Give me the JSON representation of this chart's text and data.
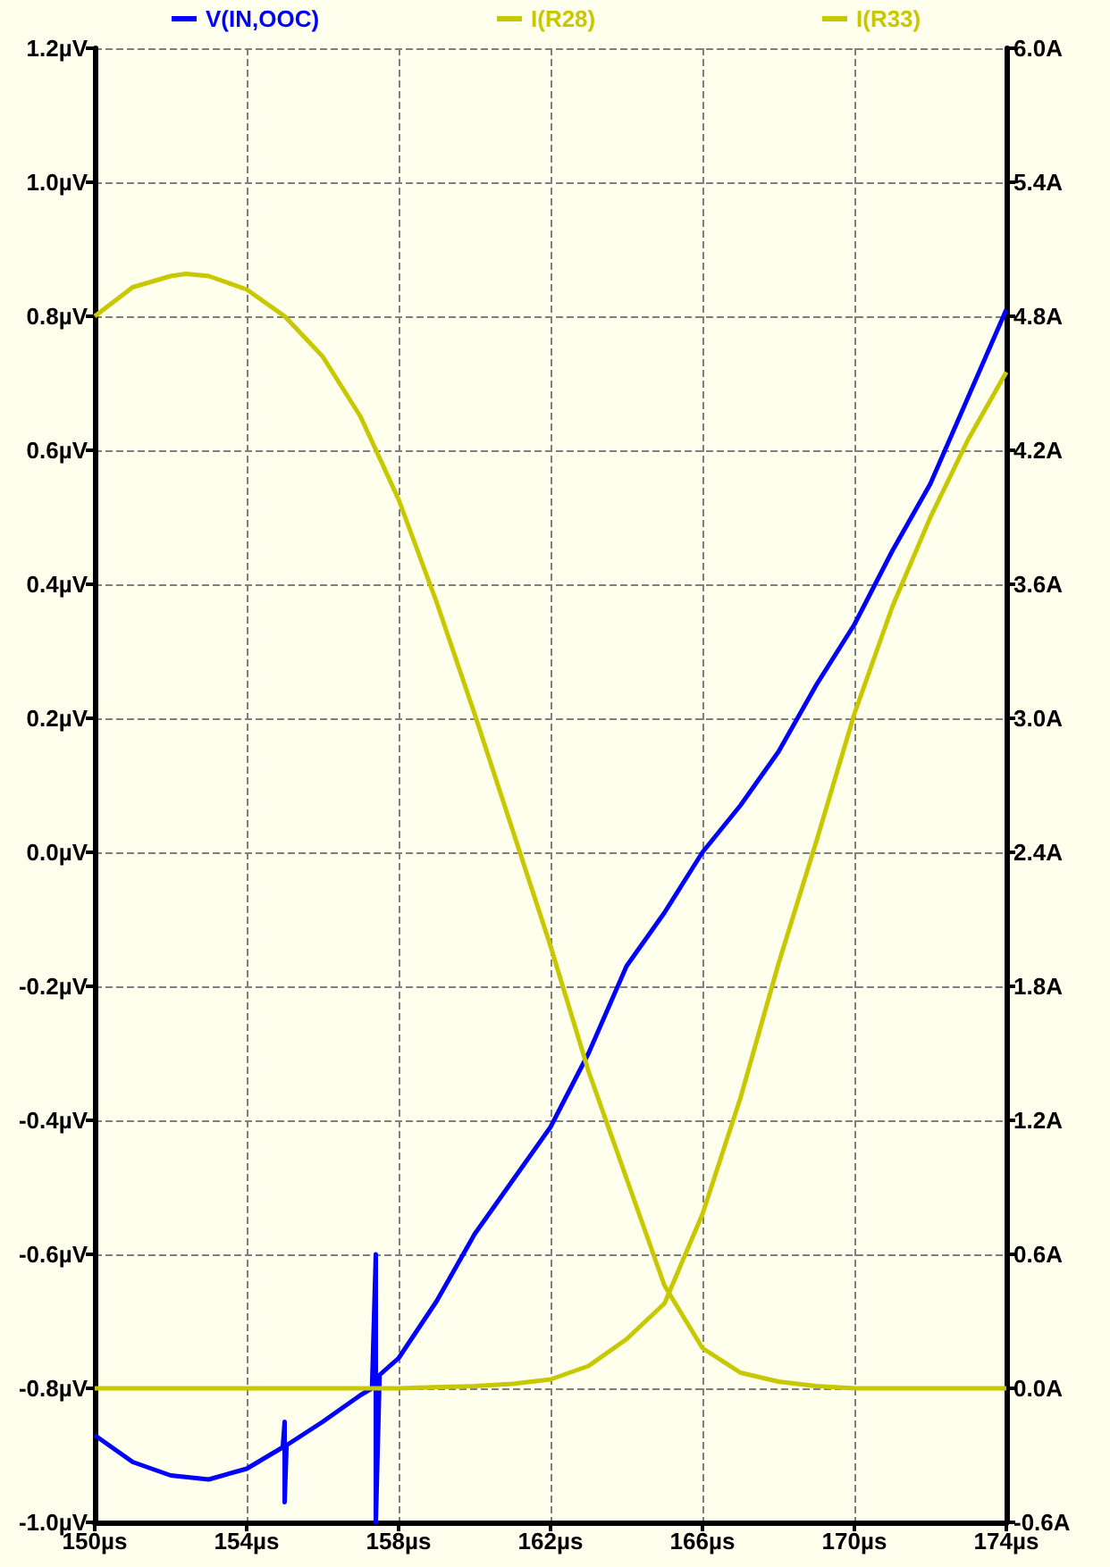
{
  "chart_data": {
    "type": "line",
    "xlim": [
      150,
      174
    ],
    "xticks": [
      {
        "value": 150,
        "label": "150µs"
      },
      {
        "value": 154,
        "label": "154µs"
      },
      {
        "value": 158,
        "label": "158µs"
      },
      {
        "value": 162,
        "label": "162µs"
      },
      {
        "value": 166,
        "label": "166µs"
      },
      {
        "value": 170,
        "label": "170µs"
      },
      {
        "value": 174,
        "label": "174µs"
      }
    ],
    "ylim": [
      -1.0,
      1.2
    ],
    "yticks": [
      {
        "value": -1.0,
        "label": "-1.0µV"
      },
      {
        "value": -0.8,
        "label": "-0.8µV"
      },
      {
        "value": -0.6,
        "label": "-0.6µV"
      },
      {
        "value": -0.4,
        "label": "-0.4µV"
      },
      {
        "value": -0.2,
        "label": "-0.2µV"
      },
      {
        "value": 0,
        "label": "0.0µV"
      },
      {
        "value": 0.2,
        "label": "0.2µV"
      },
      {
        "value": 0.4,
        "label": "0.4µV"
      },
      {
        "value": 0.6,
        "label": "0.6µV"
      },
      {
        "value": 0.8,
        "label": "0.8µV"
      },
      {
        "value": 1.0,
        "label": "1.0µV"
      },
      {
        "value": 1.2,
        "label": "1.2µV"
      }
    ],
    "y2lim": [
      -0.6,
      6.0
    ],
    "y2ticks": [
      {
        "value": -0.6,
        "label": "-0.6A"
      },
      {
        "value": 0,
        "label": "0.0A"
      },
      {
        "value": 0.6,
        "label": "0.6A"
      },
      {
        "value": 1.2,
        "label": "1.2A"
      },
      {
        "value": 1.8,
        "label": "1.8A"
      },
      {
        "value": 2.4,
        "label": "2.4A"
      },
      {
        "value": 3.0,
        "label": "3.0A"
      },
      {
        "value": 3.6,
        "label": "3.6A"
      },
      {
        "value": 4.2,
        "label": "4.2A"
      },
      {
        "value": 4.8,
        "label": "4.8A"
      },
      {
        "value": 5.4,
        "label": "5.4A"
      },
      {
        "value": 6.0,
        "label": "6.0A"
      }
    ],
    "grid": true,
    "legend": "top",
    "line_style": "solid",
    "series": [
      {
        "name": "V(IN,OOC)",
        "color": "#0000ff",
        "x": [
          150,
          151,
          152,
          153,
          154,
          154.95,
          155,
          155,
          155.05,
          156,
          157,
          157.3,
          157.4,
          157.4,
          157.5,
          158,
          159,
          160,
          161,
          162,
          163,
          164,
          165,
          166,
          167,
          168,
          169,
          170,
          171,
          172,
          173,
          174
        ],
        "values": [
          -0.87,
          -0.91,
          -0.93,
          -0.936,
          -0.92,
          -0.888,
          -0.85,
          -0.97,
          -0.885,
          -0.85,
          -0.81,
          -0.8,
          -0.6,
          -1.0,
          -0.78,
          -0.755,
          -0.67,
          -0.57,
          -0.49,
          -0.41,
          -0.3,
          -0.17,
          -0.09,
          0.0,
          0.07,
          0.15,
          0.25,
          0.34,
          0.45,
          0.55,
          0.68,
          0.81
        ]
      },
      {
        "name": "I(R28)",
        "color": "#c8c800",
        "axis": "y2",
        "x": [
          150,
          151,
          152,
          152.4,
          153,
          154,
          155,
          156,
          157,
          158,
          159,
          160,
          161,
          162,
          163,
          164,
          165,
          166,
          167,
          168,
          169,
          170,
          172,
          174
        ],
        "values": [
          4.8,
          4.93,
          4.98,
          4.99,
          4.98,
          4.92,
          4.8,
          4.62,
          4.35,
          3.98,
          3.52,
          3.02,
          2.5,
          1.98,
          1.42,
          0.94,
          0.46,
          0.18,
          0.07,
          0.03,
          0.01,
          0,
          0,
          0
        ]
      },
      {
        "name": "I(R33)",
        "color": "#c8c800",
        "axis": "y2",
        "x": [
          150,
          154,
          158,
          160,
          161,
          162,
          163,
          164,
          165,
          166,
          167,
          168,
          169,
          170,
          171,
          172,
          173,
          174
        ],
        "values": [
          0,
          0,
          0,
          0.01,
          0.02,
          0.04,
          0.1,
          0.22,
          0.38,
          0.78,
          1.3,
          1.9,
          2.45,
          3.02,
          3.5,
          3.9,
          4.25,
          4.55
        ]
      }
    ]
  }
}
